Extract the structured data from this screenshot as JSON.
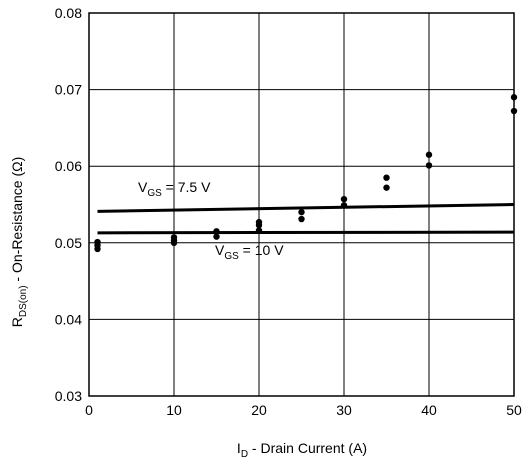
{
  "chart_data": {
    "type": "line",
    "xlabel": {
      "main": "I",
      "sub": "D",
      "rest": " - Drain Current (A)"
    },
    "ylabel": {
      "main": "R",
      "sub": "DS(on)",
      "rest": " - On-Resistance (Ω)"
    },
    "xlim": [
      0,
      50
    ],
    "ylim": [
      0.03,
      0.08
    ],
    "x_ticks": [
      "0",
      "10",
      "20",
      "30",
      "40",
      "50"
    ],
    "y_ticks": [
      "0.03",
      "0.04",
      "0.05",
      "0.06",
      "0.07",
      "0.08"
    ],
    "grid": true,
    "series": [
      {
        "name": {
          "main": "V",
          "sub": "GS",
          "rest": " = 7.5 V"
        },
        "x": [
          1,
          50
        ],
        "y": [
          0.0541,
          0.055
        ]
      },
      {
        "name": {
          "main": "V",
          "sub": "GS",
          "rest": " = 10 V"
        },
        "x": [
          1,
          50
        ],
        "y": [
          0.0513,
          0.0514
        ]
      }
    ],
    "points": {
      "x": [
        1,
        1,
        1,
        10,
        10,
        10,
        15,
        15,
        20,
        20,
        20,
        25,
        25,
        30,
        30,
        35,
        35,
        40,
        40,
        50,
        50
      ],
      "y": [
        0.0501,
        0.0497,
        0.0492,
        0.0507,
        0.0503,
        0.05,
        0.0515,
        0.0508,
        0.0527,
        0.0523,
        0.0516,
        0.054,
        0.0531,
        0.0557,
        0.0549,
        0.0585,
        0.0572,
        0.0615,
        0.0601,
        0.069,
        0.0672
      ]
    }
  }
}
